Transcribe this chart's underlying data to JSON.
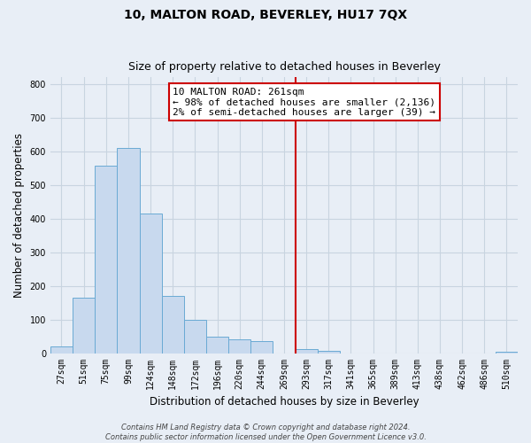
{
  "title": "10, MALTON ROAD, BEVERLEY, HU17 7QX",
  "subtitle": "Size of property relative to detached houses in Beverley",
  "xlabel": "Distribution of detached houses by size in Beverley",
  "ylabel": "Number of detached properties",
  "bin_labels": [
    "27sqm",
    "51sqm",
    "75sqm",
    "99sqm",
    "124sqm",
    "148sqm",
    "172sqm",
    "196sqm",
    "220sqm",
    "244sqm",
    "269sqm",
    "293sqm",
    "317sqm",
    "341sqm",
    "365sqm",
    "389sqm",
    "413sqm",
    "438sqm",
    "462sqm",
    "486sqm",
    "510sqm"
  ],
  "bar_heights": [
    20,
    165,
    558,
    610,
    415,
    170,
    100,
    50,
    40,
    35,
    0,
    12,
    8,
    0,
    0,
    0,
    0,
    0,
    0,
    0,
    5
  ],
  "bar_color": "#c8d9ee",
  "bar_edge_color": "#6aaad4",
  "vline_x_index": 10,
  "vline_color": "#cc0000",
  "annotation_line1": "10 MALTON ROAD: 261sqm",
  "annotation_line2": "← 98% of detached houses are smaller (2,136)",
  "annotation_line3": "2% of semi-detached houses are larger (39) →",
  "annotation_box_color": "#ffffff",
  "annotation_box_edge": "#cc0000",
  "ylim": [
    0,
    820
  ],
  "yticks": [
    0,
    100,
    200,
    300,
    400,
    500,
    600,
    700,
    800
  ],
  "footer_text": "Contains HM Land Registry data © Crown copyright and database right 2024.\nContains public sector information licensed under the Open Government Licence v3.0.",
  "background_color": "#e8eef6",
  "grid_color": "#c8d4e0",
  "title_fontsize": 10,
  "subtitle_fontsize": 9,
  "label_fontsize": 8.5,
  "tick_fontsize": 7,
  "footer_fontsize": 6,
  "annotation_fontsize": 8
}
